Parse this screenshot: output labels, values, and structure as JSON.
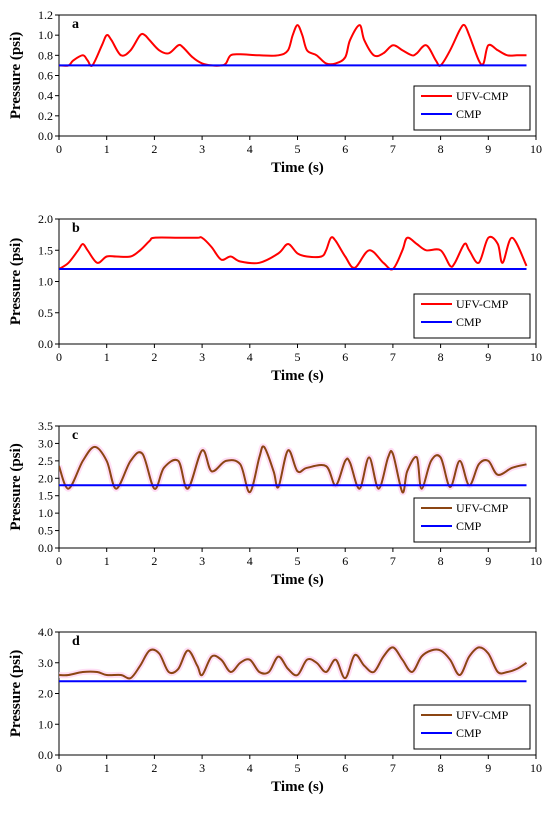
{
  "chart_data": [
    {
      "type": "line",
      "panel_label": "a",
      "xlabel": "Time (s)",
      "ylabel": "Pressure (psi)",
      "xlim": [
        0,
        10
      ],
      "ylim": [
        0,
        1.2
      ],
      "xticks": [
        "0",
        "1",
        "2",
        "3",
        "4",
        "5",
        "6",
        "7",
        "8",
        "9",
        "10"
      ],
      "yticks": [
        "0.0",
        "0.2",
        "0.4",
        "0.6",
        "0.8",
        "1.0",
        "1.2"
      ],
      "legend": "bottom-right",
      "grid": false,
      "series": [
        {
          "name": "UFV-CMP",
          "color": "#ff0000",
          "x": [
            0,
            0.2,
            0.3,
            0.5,
            0.6,
            0.7,
            0.9,
            1.0,
            1.1,
            1.3,
            1.5,
            1.7,
            1.8,
            1.9,
            2.1,
            2.3,
            2.5,
            2.6,
            2.8,
            3.0,
            3.2,
            3.4,
            3.5,
            3.6,
            3.8,
            4.2,
            4.6,
            4.8,
            4.9,
            5.0,
            5.1,
            5.2,
            5.4,
            5.6,
            5.8,
            6.0,
            6.1,
            6.3,
            6.4,
            6.6,
            6.8,
            7.0,
            7.2,
            7.4,
            7.5,
            7.7,
            7.9,
            8.0,
            8.2,
            8.4,
            8.5,
            8.6,
            8.8,
            8.9,
            9.0,
            9.2,
            9.4,
            9.6,
            9.8
          ],
          "y": [
            0.7,
            0.7,
            0.75,
            0.8,
            0.75,
            0.7,
            0.9,
            1.0,
            0.95,
            0.8,
            0.85,
            1.0,
            1.0,
            0.95,
            0.85,
            0.82,
            0.9,
            0.88,
            0.78,
            0.72,
            0.7,
            0.7,
            0.72,
            0.8,
            0.81,
            0.8,
            0.8,
            0.85,
            1.0,
            1.1,
            1.0,
            0.85,
            0.8,
            0.72,
            0.72,
            0.78,
            0.95,
            1.1,
            0.95,
            0.8,
            0.82,
            0.9,
            0.85,
            0.8,
            0.82,
            0.9,
            0.75,
            0.7,
            0.85,
            1.05,
            1.1,
            1.0,
            0.75,
            0.72,
            0.9,
            0.85,
            0.8,
            0.8,
            0.8
          ]
        },
        {
          "name": "CMP",
          "color": "#0000ff",
          "x": [
            0,
            9.8
          ],
          "y": [
            0.7,
            0.7
          ]
        }
      ]
    },
    {
      "type": "line",
      "panel_label": "b",
      "xlabel": "Time (s)",
      "ylabel": "Pressure (psi)",
      "xlim": [
        0,
        10
      ],
      "ylim": [
        0,
        2.0
      ],
      "xticks": [
        "0",
        "1",
        "2",
        "3",
        "4",
        "5",
        "6",
        "7",
        "8",
        "9",
        "10"
      ],
      "yticks": [
        "0.0",
        "0.5",
        "1.0",
        "1.5",
        "2.0"
      ],
      "legend": "bottom-right",
      "grid": false,
      "series": [
        {
          "name": "UFV-CMP",
          "color": "#ff0000",
          "x": [
            0,
            0.2,
            0.4,
            0.5,
            0.6,
            0.8,
            1.0,
            1.2,
            1.5,
            1.7,
            1.9,
            2.0,
            2.5,
            2.9,
            3.0,
            3.2,
            3.4,
            3.6,
            3.8,
            4.2,
            4.6,
            4.8,
            5.0,
            5.2,
            5.5,
            5.6,
            5.7,
            5.8,
            6.0,
            6.2,
            6.5,
            6.8,
            7.0,
            7.2,
            7.3,
            7.5,
            7.7,
            8.0,
            8.2,
            8.3,
            8.5,
            8.6,
            8.8,
            9.0,
            9.2,
            9.3,
            9.5,
            9.8
          ],
          "y": [
            1.2,
            1.3,
            1.5,
            1.6,
            1.5,
            1.3,
            1.4,
            1.4,
            1.4,
            1.5,
            1.65,
            1.7,
            1.7,
            1.7,
            1.7,
            1.55,
            1.35,
            1.4,
            1.32,
            1.3,
            1.45,
            1.6,
            1.45,
            1.4,
            1.4,
            1.5,
            1.7,
            1.65,
            1.4,
            1.22,
            1.5,
            1.3,
            1.2,
            1.5,
            1.7,
            1.6,
            1.5,
            1.5,
            1.25,
            1.3,
            1.6,
            1.5,
            1.3,
            1.7,
            1.6,
            1.3,
            1.7,
            1.25
          ]
        },
        {
          "name": "CMP",
          "color": "#0000ff",
          "x": [
            0,
            9.8
          ],
          "y": [
            1.2,
            1.2
          ]
        }
      ]
    },
    {
      "type": "line",
      "panel_label": "c",
      "xlabel": "Time (s)",
      "ylabel": "Pressure (psi)",
      "xlim": [
        0,
        10
      ],
      "ylim": [
        0,
        3.5
      ],
      "xticks": [
        "0",
        "1",
        "2",
        "3",
        "4",
        "5",
        "6",
        "7",
        "8",
        "9",
        "10"
      ],
      "yticks": [
        "0.0",
        "0.5",
        "1.0",
        "1.5",
        "2.0",
        "2.5",
        "3.0",
        "3.5"
      ],
      "legend": "bottom-right",
      "grid": false,
      "series": [
        {
          "name": "UFV-CMP",
          "color": "#8b4513",
          "x": [
            0,
            0.2,
            0.5,
            0.75,
            1.0,
            1.2,
            1.5,
            1.75,
            2.0,
            2.2,
            2.5,
            2.7,
            3.0,
            3.2,
            3.5,
            3.8,
            4.0,
            4.2,
            4.3,
            4.5,
            4.6,
            4.8,
            5.0,
            5.2,
            5.6,
            5.8,
            6.0,
            6.1,
            6.3,
            6.5,
            6.7,
            6.9,
            7.0,
            7.2,
            7.3,
            7.5,
            7.6,
            7.8,
            8.0,
            8.2,
            8.4,
            8.6,
            8.8,
            9.0,
            9.2,
            9.5,
            9.8
          ],
          "y": [
            2.35,
            1.7,
            2.5,
            2.9,
            2.5,
            1.7,
            2.5,
            2.7,
            1.7,
            2.3,
            2.5,
            1.7,
            2.8,
            2.2,
            2.5,
            2.4,
            1.6,
            2.6,
            2.9,
            2.2,
            1.75,
            2.8,
            2.2,
            2.3,
            2.35,
            1.8,
            2.5,
            2.45,
            1.7,
            2.6,
            1.7,
            2.6,
            2.7,
            1.6,
            2.2,
            2.6,
            1.7,
            2.5,
            2.6,
            1.75,
            2.5,
            1.8,
            2.4,
            2.5,
            2.1,
            2.3,
            2.4
          ]
        },
        {
          "name": "CMP",
          "color": "#0000ff",
          "x": [
            0,
            9.8
          ],
          "y": [
            1.8,
            1.8
          ]
        }
      ]
    },
    {
      "type": "line",
      "panel_label": "d",
      "xlabel": "Time (s)",
      "ylabel": "Pressure (psi)",
      "xlim": [
        0,
        10
      ],
      "ylim": [
        0,
        4.0
      ],
      "xticks": [
        "0",
        "1",
        "2",
        "3",
        "4",
        "5",
        "6",
        "7",
        "8",
        "9",
        "10"
      ],
      "yticks": [
        "0.0",
        "1.0",
        "2.0",
        "3.0",
        "4.0"
      ],
      "legend": "bottom-right",
      "grid": false,
      "series": [
        {
          "name": "UFV-CMP",
          "color": "#8b4513",
          "x": [
            0,
            0.2,
            0.5,
            0.8,
            1.0,
            1.3,
            1.5,
            1.7,
            1.9,
            2.1,
            2.3,
            2.5,
            2.7,
            2.9,
            3.0,
            3.2,
            3.4,
            3.6,
            3.8,
            4.0,
            4.2,
            4.4,
            4.6,
            4.8,
            5.0,
            5.2,
            5.4,
            5.6,
            5.8,
            6.0,
            6.2,
            6.4,
            6.6,
            6.8,
            7.0,
            7.2,
            7.4,
            7.6,
            7.8,
            8.0,
            8.2,
            8.4,
            8.6,
            8.8,
            9.0,
            9.2,
            9.4,
            9.6,
            9.8
          ],
          "y": [
            2.6,
            2.6,
            2.7,
            2.7,
            2.6,
            2.6,
            2.5,
            2.9,
            3.4,
            3.3,
            2.7,
            2.8,
            3.4,
            2.9,
            2.6,
            3.2,
            3.1,
            2.7,
            3.0,
            3.1,
            2.7,
            2.7,
            3.2,
            2.8,
            2.6,
            3.1,
            3.0,
            2.7,
            3.1,
            2.5,
            3.25,
            2.9,
            2.7,
            3.2,
            3.5,
            3.1,
            2.7,
            3.2,
            3.4,
            3.4,
            3.1,
            2.6,
            3.2,
            3.5,
            3.3,
            2.7,
            2.7,
            2.8,
            3.0
          ]
        },
        {
          "name": "CMP",
          "color": "#0000ff",
          "x": [
            0,
            9.8
          ],
          "y": [
            2.4,
            2.4
          ]
        }
      ]
    }
  ]
}
